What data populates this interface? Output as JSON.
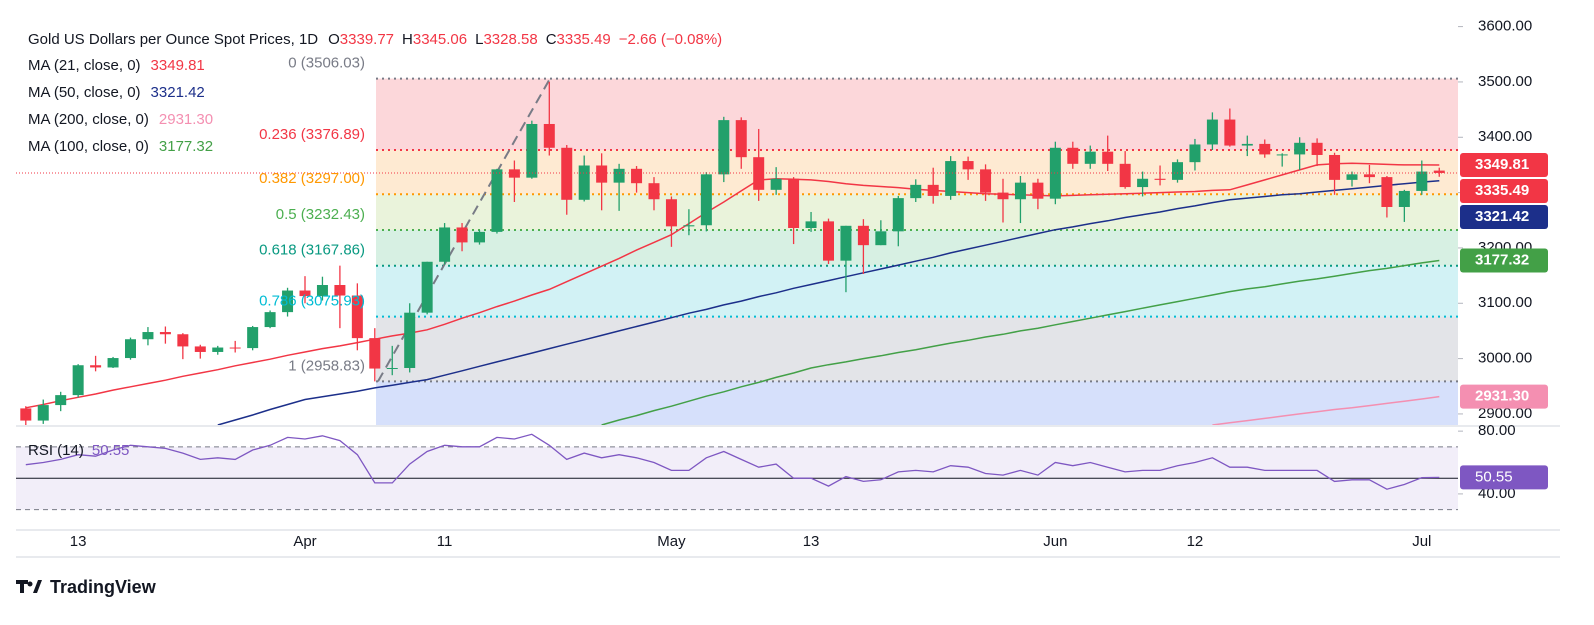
{
  "brand": "TradingView",
  "chart_data": [
    {
      "type": "candlestick",
      "title": "Gold US Dollars per Ounce Spot Prices, 1D",
      "ohlc_keys": [
        "O",
        "H",
        "L",
        "C"
      ],
      "change": "−2.66 (−0.08%)",
      "categories": [
        null,
        null,
        null,
        "13",
        null,
        null,
        null,
        null,
        null,
        null,
        null,
        null,
        null,
        null,
        null,
        null,
        "Apr",
        null,
        null,
        null,
        null,
        null,
        null,
        null,
        "11",
        null,
        null,
        null,
        null,
        null,
        null,
        null,
        null,
        null,
        null,
        null,
        null,
        "May",
        null,
        null,
        null,
        null,
        null,
        null,
        null,
        "13",
        null,
        null,
        null,
        null,
        null,
        null,
        null,
        null,
        null,
        null,
        null,
        null,
        null,
        "Jun",
        null,
        null,
        null,
        null,
        null,
        null,
        null,
        "12",
        null,
        null,
        null,
        null,
        null,
        null,
        null,
        null,
        null,
        null,
        null,
        null,
        "Jul",
        null
      ],
      "open": [
        2910,
        2888,
        2916,
        2934,
        2988,
        2984,
        3001,
        3035,
        3048,
        3044,
        3022,
        3012,
        3020,
        3019,
        3057,
        3084,
        3123,
        3113,
        3133,
        3114,
        3037,
        2982,
        2983,
        3083,
        3175,
        3237,
        3210,
        3229,
        3342,
        3327,
        3424,
        3381,
        3287,
        3349,
        3318,
        3343,
        3317,
        3288,
        3239,
        3241,
        3333,
        3431,
        3364,
        3305,
        3325,
        3236,
        3248,
        3177,
        3240,
        3205,
        3230,
        3290,
        3314,
        3294,
        3357,
        3342,
        3300,
        3288,
        3318,
        3289,
        3381,
        3352,
        3374,
        3352,
        3310,
        3325,
        3323,
        3355,
        3387,
        3432,
        3385,
        3388,
        3369,
        3369,
        3390,
        3368,
        3323,
        3333,
        3328,
        3274,
        3303,
        3339.77
      ],
      "high": [
        2914,
        2926,
        2940,
        2990,
        3005,
        3003,
        3038,
        3057,
        3058,
        3046,
        3025,
        3023,
        3032,
        3059,
        3087,
        3128,
        3149,
        3148,
        3168,
        3136,
        3055,
        3023,
        3100,
        3175,
        3245,
        3245,
        3232,
        3343,
        3358,
        3430,
        3500,
        3386,
        3367,
        3371,
        3352,
        3348,
        3328,
        3293,
        3270,
        3337,
        3437,
        3436,
        3415,
        3346,
        3328,
        3265,
        3253,
        3240,
        3252,
        3250,
        3294,
        3324,
        3345,
        3366,
        3365,
        3351,
        3325,
        3330,
        3325,
        3392,
        3392,
        3385,
        3403,
        3375,
        3338,
        3349,
        3360,
        3397,
        3445,
        3452,
        3403,
        3396,
        3371,
        3400,
        3398,
        3372,
        3338,
        3350,
        3330,
        3305,
        3358,
        3345.06
      ],
      "low": [
        2880,
        2882,
        2905,
        2930,
        2977,
        2983,
        2998,
        3024,
        3027,
        2999,
        3000,
        3007,
        3011,
        3015,
        3055,
        3076,
        3100,
        3105,
        3055,
        3015,
        2958.83,
        2970,
        2975,
        3080,
        3170,
        3194,
        3206,
        3226,
        3283,
        3325,
        3367,
        3260,
        3284,
        3268,
        3267,
        3300,
        3268,
        3202,
        3223,
        3230,
        3319,
        3343,
        3285,
        3296,
        3207,
        3229,
        3171,
        3120,
        3153,
        3205,
        3203,
        3283,
        3280,
        3287,
        3323,
        3285,
        3246,
        3245,
        3270,
        3279,
        3343,
        3343,
        3339,
        3307,
        3293,
        3313,
        3318,
        3340,
        3377,
        3383,
        3366,
        3363,
        3347,
        3341,
        3348,
        3296,
        3311,
        3317,
        3255,
        3247,
        3296,
        3328.58
      ],
      "close": [
        2888,
        2916,
        2934,
        2988,
        2984,
        3001,
        3035,
        3048,
        3044,
        3022,
        3012,
        3020,
        3019,
        3057,
        3084,
        3123,
        3113,
        3133,
        3114,
        3037,
        2982,
        2983,
        3083,
        3175,
        3237,
        3210,
        3229,
        3342,
        3327,
        3424,
        3381,
        3287,
        3349,
        3318,
        3343,
        3317,
        3288,
        3239,
        3241,
        3333,
        3431,
        3364,
        3305,
        3325,
        3236,
        3248,
        3177,
        3240,
        3205,
        3230,
        3290,
        3314,
        3294,
        3357,
        3342,
        3300,
        3288,
        3318,
        3289,
        3381,
        3352,
        3374,
        3352,
        3310,
        3325,
        3323,
        3355,
        3387,
        3432,
        3385,
        3388,
        3369,
        3369,
        3390,
        3368,
        3323,
        3333,
        3328,
        3274,
        3303,
        3338,
        3335.49
      ],
      "up_color": "#22a06b",
      "down_color": "#f23645",
      "ylim": [
        2880,
        3630
      ],
      "yticks": [
        {
          "value": 2900,
          "label": "2900.00"
        },
        {
          "value": 3000,
          "label": "3000.00"
        },
        {
          "value": 3100,
          "label": "3100.00"
        },
        {
          "value": 3200,
          "label": "3200.00"
        },
        {
          "value": 3300,
          "label": "3300.00"
        },
        {
          "value": 3400,
          "label": "3400.00"
        },
        {
          "value": 3500,
          "label": "3500.00"
        },
        {
          "value": 3600,
          "label": "3600.00"
        }
      ],
      "series": [
        {
          "name": "MA (21, close, 0)",
          "color": "#f23645",
          "label": "3349.81",
          "values": [
            2911,
            2917,
            2924,
            2930,
            2936,
            2943,
            2949,
            2955,
            2961,
            2968,
            2974,
            2980,
            2987,
            2993,
            2999,
            3006,
            3012,
            3018,
            3023,
            3029,
            3035,
            3041,
            3046,
            3052,
            3062,
            3073,
            3083,
            3094,
            3104,
            3115,
            3125,
            3139,
            3153,
            3167,
            3181,
            3196,
            3210,
            3224,
            3244,
            3264,
            3283,
            3303,
            3323,
            3325,
            3324,
            3323,
            3320,
            3316,
            3313,
            3311,
            3309,
            3306,
            3304,
            3302,
            3300,
            3298,
            3297,
            3296,
            3295,
            3294,
            3295,
            3296,
            3297,
            3298,
            3299,
            3300,
            3301,
            3302,
            3304,
            3305,
            3314,
            3323,
            3332,
            3341,
            3350,
            3352,
            3353,
            3352,
            3351,
            3350,
            3350,
            3349.81
          ]
        },
        {
          "name": "MA (50, close, 0)",
          "color": "#1c2f8a",
          "label": "3321.42",
          "values": [
            null,
            null,
            null,
            null,
            null,
            null,
            null,
            null,
            null,
            null,
            null,
            2880,
            2889,
            2898,
            2908,
            2917,
            2926,
            2931,
            2936,
            2941,
            2947,
            2952,
            2957,
            2962,
            2970,
            2978,
            2986,
            2994,
            3002,
            3010,
            3018,
            3026,
            3034,
            3042,
            3050,
            3058,
            3066,
            3074,
            3082,
            3089,
            3097,
            3104,
            3112,
            3119,
            3127,
            3134,
            3141,
            3148,
            3155,
            3162,
            3169,
            3176,
            3183,
            3191,
            3198,
            3205,
            3212,
            3219,
            3226,
            3233,
            3238,
            3244,
            3249,
            3255,
            3260,
            3265,
            3271,
            3276,
            3282,
            3287,
            3290,
            3293,
            3296,
            3298,
            3301,
            3304,
            3307,
            3310,
            3313,
            3316,
            3319,
            3321.42
          ]
        },
        {
          "name": "MA (200, close, 0)",
          "color": "#f48fb1",
          "label": "2931.30",
          "values": [
            null,
            null,
            null,
            null,
            null,
            null,
            null,
            null,
            null,
            null,
            null,
            null,
            null,
            null,
            null,
            null,
            null,
            null,
            null,
            null,
            null,
            null,
            null,
            null,
            null,
            null,
            null,
            null,
            null,
            null,
            null,
            null,
            null,
            null,
            null,
            null,
            null,
            null,
            null,
            null,
            null,
            null,
            null,
            null,
            null,
            null,
            null,
            null,
            null,
            null,
            null,
            null,
            null,
            null,
            null,
            null,
            null,
            null,
            null,
            null,
            null,
            null,
            null,
            null,
            null,
            null,
            null,
            null,
            2880,
            2884,
            2888,
            2892,
            2896,
            2900,
            2904,
            2908,
            2911,
            2915,
            2919,
            2923,
            2927,
            2931.3
          ]
        },
        {
          "name": "MA (100, close, 0)",
          "color": "#43a047",
          "label": "3177.32",
          "values": [
            null,
            null,
            null,
            null,
            null,
            null,
            null,
            null,
            null,
            null,
            null,
            null,
            null,
            null,
            null,
            null,
            null,
            null,
            null,
            null,
            null,
            null,
            null,
            null,
            null,
            null,
            null,
            null,
            null,
            null,
            null,
            null,
            null,
            2880,
            2889,
            2897,
            2906,
            2914,
            2923,
            2932,
            2940,
            2949,
            2957,
            2966,
            2974,
            2983,
            2989,
            2994,
            3000,
            3005,
            3011,
            3016,
            3022,
            3028,
            3033,
            3039,
            3044,
            3050,
            3055,
            3061,
            3067,
            3073,
            3079,
            3085,
            3091,
            3097,
            3103,
            3109,
            3115,
            3121,
            3126,
            3130,
            3135,
            3140,
            3144,
            3149,
            3154,
            3159,
            3163,
            3168,
            3173,
            3177.32
          ]
        }
      ],
      "fib": [
        {
          "ratio": 0,
          "price": 3506.03,
          "label": "0 (3506.03)",
          "color": "#787b86",
          "fill": "#fcd7da"
        },
        {
          "ratio": 0.236,
          "price": 3376.89,
          "label": "0.236 (3376.89)",
          "color": "#f23645",
          "fill": "#feead2"
        },
        {
          "ratio": 0.382,
          "price": 3297.0,
          "label": "0.382 (3297.00)",
          "color": "#ff9800",
          "fill": "#eaf3db"
        },
        {
          "ratio": 0.5,
          "price": 3232.43,
          "label": "0.5 (3232.43)",
          "color": "#4caf50",
          "fill": "#d7f0e3"
        },
        {
          "ratio": 0.618,
          "price": 3167.86,
          "label": "0.618 (3167.86)",
          "color": "#089981",
          "fill": "#d2f2f5"
        },
        {
          "ratio": 0.786,
          "price": 3075.93,
          "label": "0.786 (3075.93)",
          "color": "#00bcd4",
          "fill": "#e3e4e8"
        },
        {
          "ratio": 1,
          "price": 2958.83,
          "label": "1 (2958.83)",
          "color": "#787b86",
          "fill": "#d6e0fb"
        }
      ]
    },
    {
      "type": "line",
      "name": "RSI (14)",
      "label": "50.55",
      "color": "#7e57c2",
      "ylim": [
        17,
        82
      ],
      "yticks": [
        {
          "value": 80,
          "label": "80.00"
        },
        {
          "value": 40,
          "label": "40.00"
        }
      ],
      "bands": [
        70,
        30
      ],
      "midline": 50,
      "values": [
        58.6,
        60,
        62,
        65,
        64,
        68,
        71,
        70,
        69,
        66,
        62,
        63,
        62,
        68,
        71,
        76,
        75,
        77,
        74,
        65,
        47,
        47,
        59,
        67,
        71,
        70,
        70,
        76,
        75,
        78,
        71,
        62,
        66,
        63,
        65,
        63,
        60,
        55,
        55,
        63,
        67,
        62,
        57,
        59,
        50,
        50,
        45,
        51,
        48,
        49,
        54,
        55,
        54,
        58,
        57,
        53,
        52,
        55,
        52,
        60,
        58,
        60,
        57,
        54,
        55,
        55,
        58,
        60,
        63,
        57,
        57,
        55,
        55,
        55,
        55,
        48,
        49,
        49,
        43,
        46,
        50.3,
        50.55
      ]
    }
  ]
}
